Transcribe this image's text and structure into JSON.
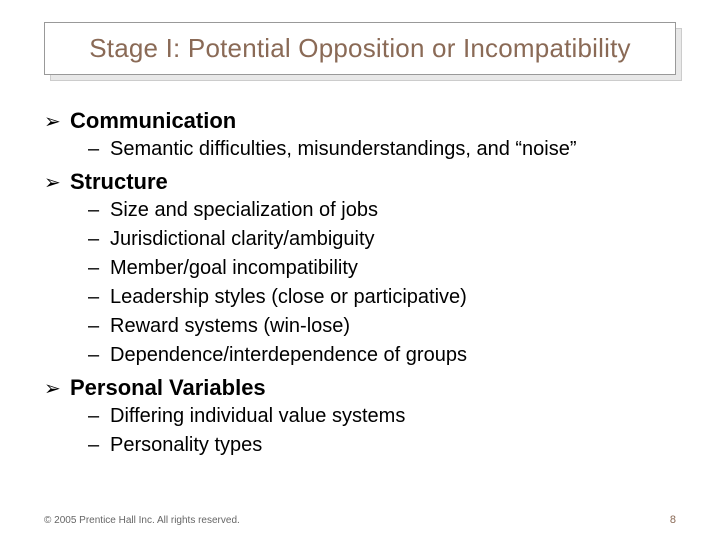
{
  "slide": {
    "title": "Stage I: Potential Opposition or Incompatibility",
    "title_color": "#8a6a56",
    "title_fontsize": 26,
    "title_border_color": "#999999",
    "title_shadow_color": "#e8e8e8",
    "background_color": "#ffffff"
  },
  "bullet_style": {
    "level1_marker": "➢",
    "level1_fontsize": 22,
    "level1_fontweight": 700,
    "level2_marker": "–",
    "level2_fontsize": 20,
    "text_color": "#000000"
  },
  "items": [
    {
      "label": "Communication",
      "subitems": [
        "Semantic difficulties, misunderstandings, and “noise”"
      ]
    },
    {
      "label": "Structure",
      "subitems": [
        "Size and specialization of jobs",
        "Jurisdictional clarity/ambiguity",
        "Member/goal incompatibility",
        "Leadership styles (close or participative)",
        "Reward systems (win-lose)",
        "Dependence/interdependence of groups"
      ]
    },
    {
      "label": "Personal Variables",
      "subitems": [
        "Differing individual value systems",
        "Personality types"
      ]
    }
  ],
  "footer": {
    "copyright": "© 2005 Prentice Hall Inc. All rights reserved.",
    "page_number": "8",
    "copyright_color": "#666666",
    "page_color": "#8a6a56"
  }
}
